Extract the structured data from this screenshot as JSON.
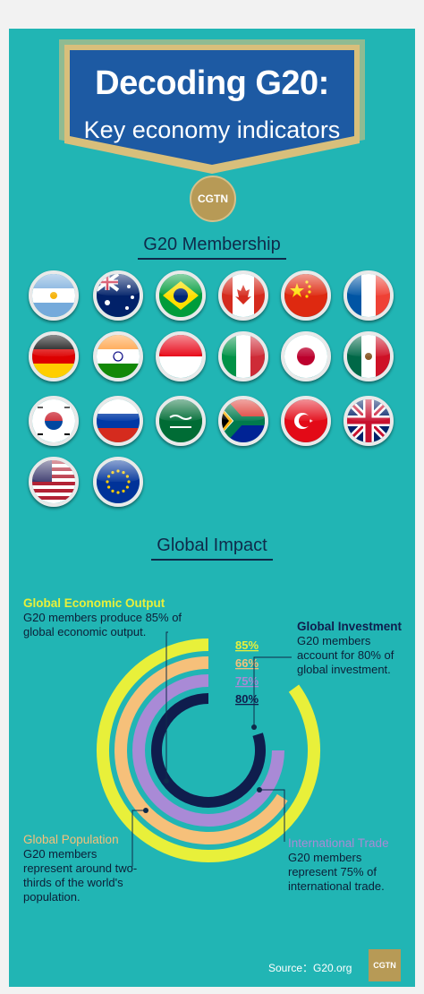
{
  "header": {
    "title": "Decoding G20:",
    "subtitle": "Key economy indicators",
    "logo_text": "CGTN"
  },
  "membership": {
    "title": "G20 Membership",
    "flags": [
      {
        "icon": "argentina-flag-icon"
      },
      {
        "icon": "australia-flag-icon"
      },
      {
        "icon": "brazil-flag-icon"
      },
      {
        "icon": "canada-flag-icon"
      },
      {
        "icon": "china-flag-icon"
      },
      {
        "icon": "france-flag-icon"
      },
      {
        "icon": "germany-flag-icon"
      },
      {
        "icon": "india-flag-icon"
      },
      {
        "icon": "indonesia-flag-icon"
      },
      {
        "icon": "italy-flag-icon"
      },
      {
        "icon": "japan-flag-icon"
      },
      {
        "icon": "mexico-flag-icon"
      },
      {
        "icon": "south-korea-flag-icon"
      },
      {
        "icon": "russia-flag-icon"
      },
      {
        "icon": "saudi-arabia-flag-icon"
      },
      {
        "icon": "south-africa-flag-icon"
      },
      {
        "icon": "turkey-flag-icon"
      },
      {
        "icon": "united-kingdom-flag-icon"
      },
      {
        "icon": "united-states-flag-icon"
      },
      {
        "icon": "european-union-flag-icon"
      }
    ]
  },
  "impact": {
    "title": "Global Impact",
    "indicators": [
      {
        "heading": "Global Economic Output",
        "text": "G20 members produce 85% of global economic output.",
        "value": 85,
        "value_label": "85%",
        "color": "#e8f03a"
      },
      {
        "heading": "Global Population",
        "text": "G20 members represent around two-thirds of the world's population.",
        "value": 66,
        "value_label": "66%",
        "color": "#f6c07a"
      },
      {
        "heading": "International Trade",
        "text": "G20 members represent 75% of international trade.",
        "value": 75,
        "value_label": "75%",
        "color": "#a98ad6"
      },
      {
        "heading": "Global Investment",
        "text": "G20 members account for 80% of global investment.",
        "value": 80,
        "value_label": "80%",
        "color": "#0f1d4d"
      }
    ]
  },
  "footer": {
    "source": "Source：G20.org",
    "logo_text": "CGTN"
  }
}
